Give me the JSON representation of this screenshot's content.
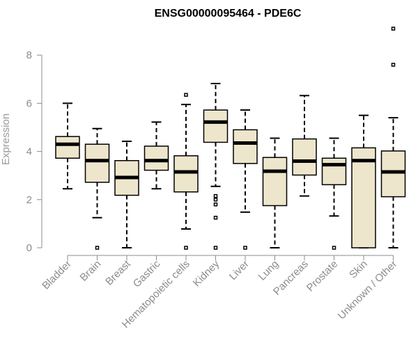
{
  "chart_data": {
    "type": "boxplot",
    "title": "ENSG00000095464 - PDE6C",
    "xlabel": "",
    "ylabel": "Expression",
    "ylim": [
      0,
      9.2
    ],
    "yticks": [
      0,
      2,
      4,
      6,
      8
    ],
    "grid": false,
    "colors": {
      "box_fill": "#ede6cc",
      "box_stroke": "#000000",
      "median": "#000000",
      "axis": "#8c8c8c",
      "tick_text": "#8c8c8c",
      "title": "#000000"
    },
    "categories": [
      "Bladder",
      "Brain",
      "Breast",
      "Gastric",
      "Hematopoietic cells",
      "Kidney",
      "Liver",
      "Lung",
      "Pancreas",
      "Prostate",
      "Skin",
      "Unknown / Other"
    ],
    "boxes": [
      {
        "category": "Bladder",
        "whisker_low": 2.45,
        "q1": 3.72,
        "median": 4.3,
        "q3": 4.62,
        "whisker_high": 6.0,
        "outliers": []
      },
      {
        "category": "Brain",
        "whisker_low": 1.25,
        "q1": 2.72,
        "median": 3.62,
        "q3": 4.3,
        "whisker_high": 4.95,
        "outliers": [
          0.0
        ]
      },
      {
        "category": "Breast",
        "whisker_low": 0.0,
        "q1": 2.18,
        "median": 2.92,
        "q3": 3.62,
        "whisker_high": 4.42,
        "outliers": []
      },
      {
        "category": "Gastric",
        "whisker_low": 2.45,
        "q1": 3.22,
        "median": 3.62,
        "q3": 4.22,
        "whisker_high": 5.22,
        "outliers": []
      },
      {
        "category": "Hematopoietic cells",
        "whisker_low": 0.78,
        "q1": 2.32,
        "median": 3.15,
        "q3": 3.82,
        "whisker_high": 5.95,
        "outliers": [
          0.0,
          6.35
        ]
      },
      {
        "category": "Kidney",
        "whisker_low": 2.55,
        "q1": 4.38,
        "median": 5.22,
        "q3": 5.72,
        "whisker_high": 6.82,
        "outliers": [
          0.0,
          1.25,
          1.8,
          2.0,
          2.15
        ]
      },
      {
        "category": "Liver",
        "whisker_low": 1.48,
        "q1": 3.5,
        "median": 4.35,
        "q3": 4.9,
        "whisker_high": 5.72,
        "outliers": [
          0.0
        ]
      },
      {
        "category": "Lung",
        "whisker_low": 0.0,
        "q1": 1.75,
        "median": 3.18,
        "q3": 3.75,
        "whisker_high": 4.55,
        "outliers": []
      },
      {
        "category": "Pancreas",
        "whisker_low": 2.15,
        "q1": 3.02,
        "median": 3.6,
        "q3": 4.52,
        "whisker_high": 6.32,
        "outliers": []
      },
      {
        "category": "Prostate",
        "whisker_low": 1.32,
        "q1": 2.62,
        "median": 3.45,
        "q3": 3.72,
        "whisker_high": 4.55,
        "outliers": [
          0.0
        ]
      },
      {
        "category": "Skin",
        "whisker_low": 0.0,
        "q1": 0.0,
        "median": 3.62,
        "q3": 4.15,
        "whisker_high": 5.5,
        "outliers": []
      },
      {
        "category": "Unknown / Other",
        "whisker_low": 0.0,
        "q1": 2.12,
        "median": 3.15,
        "q3": 4.02,
        "whisker_high": 5.4,
        "outliers": [
          7.6,
          9.1
        ]
      }
    ]
  }
}
